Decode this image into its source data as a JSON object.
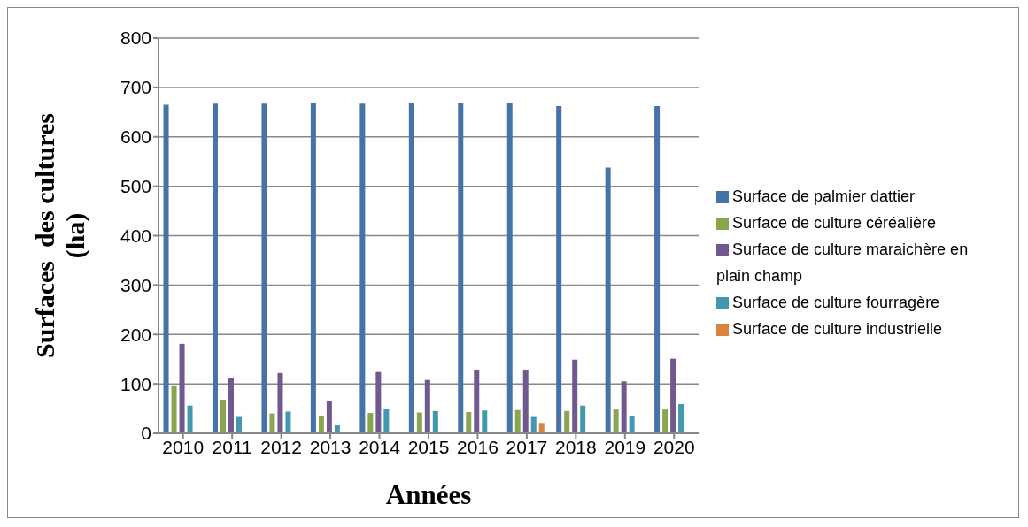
{
  "chart_data": {
    "type": "bar",
    "xlabel": "Années",
    "ylabel": "Surfaces  des cultures (ha)",
    "categories": [
      "2010",
      "2011",
      "2012",
      "2013",
      "2014",
      "2015",
      "2016",
      "2017",
      "2018",
      "2019",
      "2020"
    ],
    "series": [
      {
        "name": "Surface de palmier dattier",
        "color": "#4572a7",
        "values": [
          665,
          667,
          667,
          668,
          667,
          669,
          669,
          669,
          662,
          538,
          662
        ]
      },
      {
        "name": "Surface de culture céréalière",
        "color": "#89a54e",
        "values": [
          97,
          68,
          40,
          35,
          41,
          42,
          43,
          47,
          45,
          48,
          48
        ]
      },
      {
        "name": "Surface de culture maraichère en plain champ",
        "color": "#71588f",
        "values": [
          181,
          112,
          122,
          66,
          124,
          108,
          129,
          127,
          149,
          105,
          151
        ]
      },
      {
        "name": "Surface de culture fourragère",
        "color": "#4198af",
        "values": [
          56,
          33,
          44,
          16,
          49,
          45,
          46,
          33,
          56,
          34,
          59
        ]
      },
      {
        "name": "Surface de culture industrielle",
        "color": "#db843d",
        "values": [
          0,
          3,
          3,
          0,
          0,
          1,
          0,
          21,
          1,
          0,
          1
        ]
      }
    ],
    "ylim": [
      0,
      800
    ],
    "yticks": [
      0,
      100,
      200,
      300,
      400,
      500,
      600,
      700,
      800
    ],
    "grid": "y",
    "legend": "right"
  }
}
